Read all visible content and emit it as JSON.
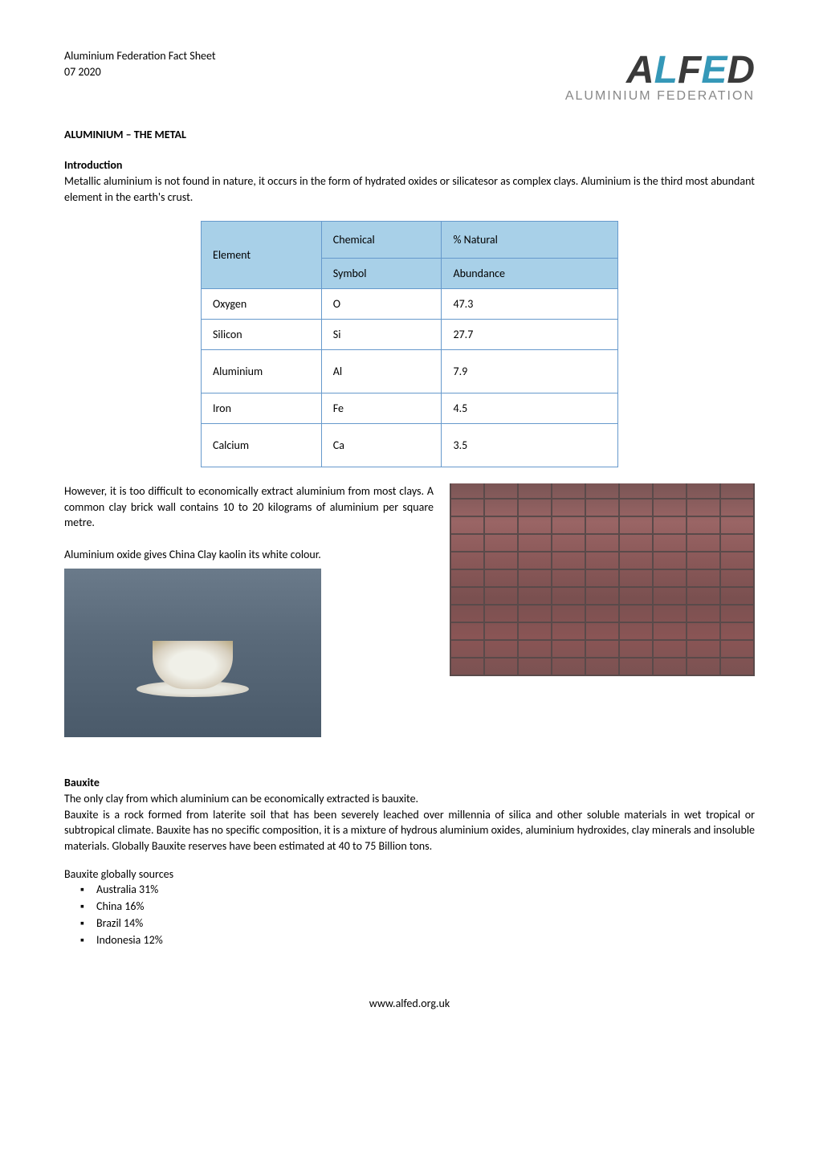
{
  "header": {
    "org": "Aluminium Federation Fact Sheet",
    "date": "07 2020",
    "logo_alfed_a": "A",
    "logo_alfed_l": "L",
    "logo_alfed_f": "F",
    "logo_alfed_e": "E",
    "logo_alfed_d": "D",
    "logo_subtitle": "ALUMINIUM FEDERATION"
  },
  "colors": {
    "logo_a": "#3a3a3a",
    "logo_l": "#3598b8",
    "logo_fed": "#3a3a3a"
  },
  "title": "ALUMINIUM – THE METAL",
  "intro": {
    "heading": "Introduction",
    "text": "Metallic aluminium is not found in nature, it occurs in the form of hydrated oxides or silicatesor as complex clays. Aluminium is the third most abundant element in the earth's crust."
  },
  "table": {
    "header_element": "Element",
    "header_chemical": "Chemical",
    "header_natural": "% Natural",
    "subheader_symbol": "Symbol",
    "subheader_abundance": "Abundance",
    "rows": [
      {
        "element": "Oxygen",
        "symbol": "O",
        "abundance": "47.3"
      },
      {
        "element": "Silicon",
        "symbol": "Si",
        "abundance": "27.7"
      },
      {
        "element": "Aluminium",
        "symbol": "Al",
        "abundance": "7.9"
      },
      {
        "element": "Iron",
        "symbol": "Fe",
        "abundance": "4.5"
      },
      {
        "element": "Calcium",
        "symbol": "Ca",
        "abundance": "3.5"
      }
    ],
    "header_bg": "#a8d0e8",
    "border_color": "#6699cc"
  },
  "para2": "However, it is too difficult to economically extract aluminium from most clays. A common clay brick wall contains 10 to 20 kilograms of aluminium per square metre.",
  "para3": "Aluminium oxide gives China Clay kaolin its white colour.",
  "bauxite": {
    "heading": "Bauxite",
    "intro": "The only clay from which aluminium can be economically extracted is bauxite.",
    "body": "Bauxite is a rock formed from laterite soil that has been severely leached over millennia of silica and other soluble materials in wet tropical or subtropical climate. Bauxite has no specific composition, it is a mixture of hydrous aluminium oxides, aluminium hydroxides, clay minerals and insoluble materials. Globally Bauxite reserves have been estimated at 40 to 75 Billion tons.",
    "sources_heading": "Bauxite globally sources",
    "sources": [
      "Australia 31%",
      "China 16%",
      "Brazil 14%",
      "Indonesia 12%"
    ]
  },
  "footer": "www.alfed.org.uk"
}
